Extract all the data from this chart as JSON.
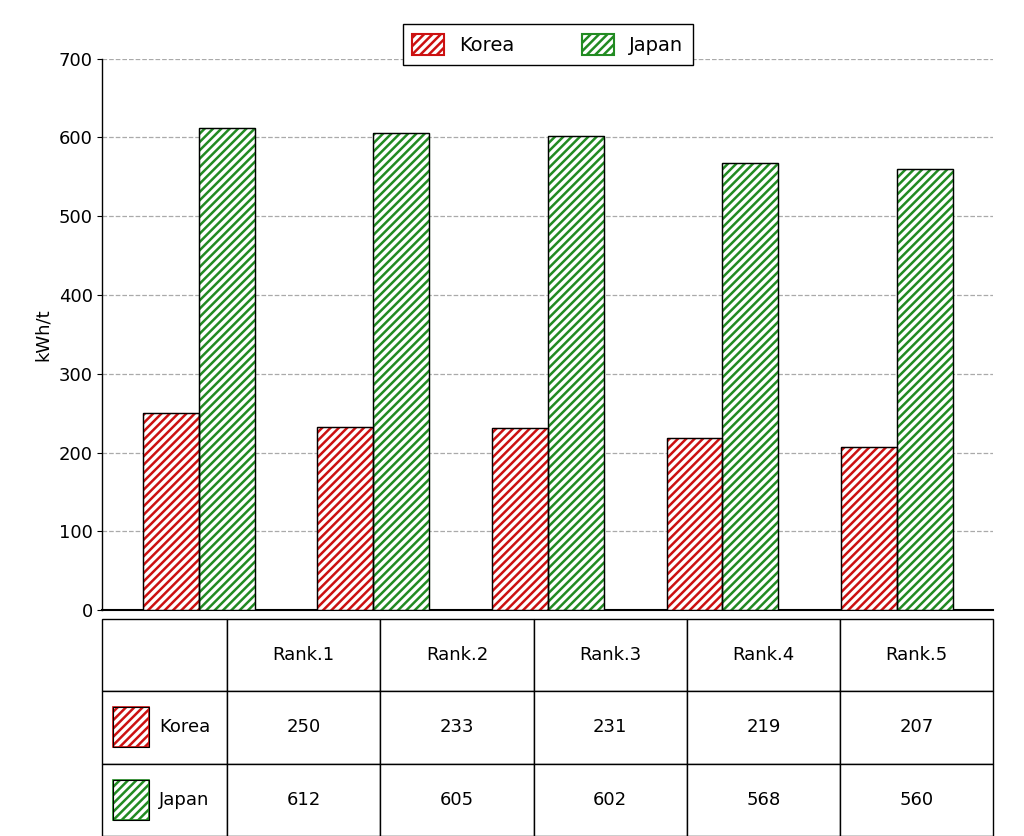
{
  "categories": [
    "Rank.1",
    "Rank.2",
    "Rank.3",
    "Rank.4",
    "Rank.5"
  ],
  "korea_values": [
    250,
    233,
    231,
    219,
    207
  ],
  "japan_values": [
    612,
    605,
    602,
    568,
    560
  ],
  "korea_color": "#CC1111",
  "japan_color": "#228B22",
  "korea_label": "Korea",
  "japan_label": "Japan",
  "ylabel": "kWh/t",
  "ylim": [
    0,
    700
  ],
  "yticks": [
    0,
    100,
    200,
    300,
    400,
    500,
    600,
    700
  ],
  "bar_width": 0.32,
  "background_color": "#ffffff",
  "grid_color": "#aaaaaa",
  "hatch_pattern": "////",
  "legend_fontsize": 14,
  "tick_fontsize": 13,
  "ylabel_fontsize": 13,
  "table_fontsize": 13
}
